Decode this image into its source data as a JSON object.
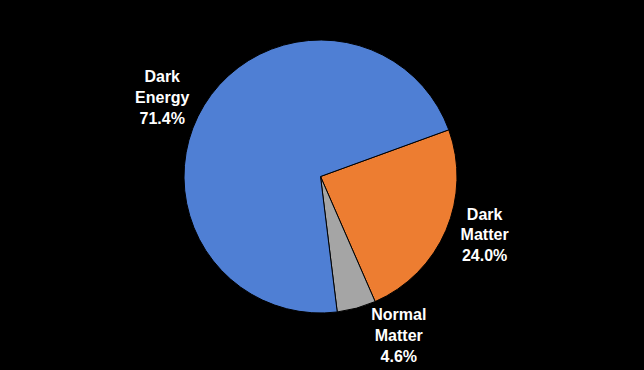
{
  "chart_data": {
    "type": "pie",
    "categories": [
      "Dark Matter",
      "Normal Matter",
      "Dark Energy"
    ],
    "values": [
      24.0,
      4.6,
      71.4
    ],
    "value_labels": [
      "24.0%",
      "4.6%",
      "71.4%"
    ],
    "colors": [
      "#ed7d31",
      "#a5a5a5",
      "#4f7fd4"
    ],
    "data_labels": true
  }
}
